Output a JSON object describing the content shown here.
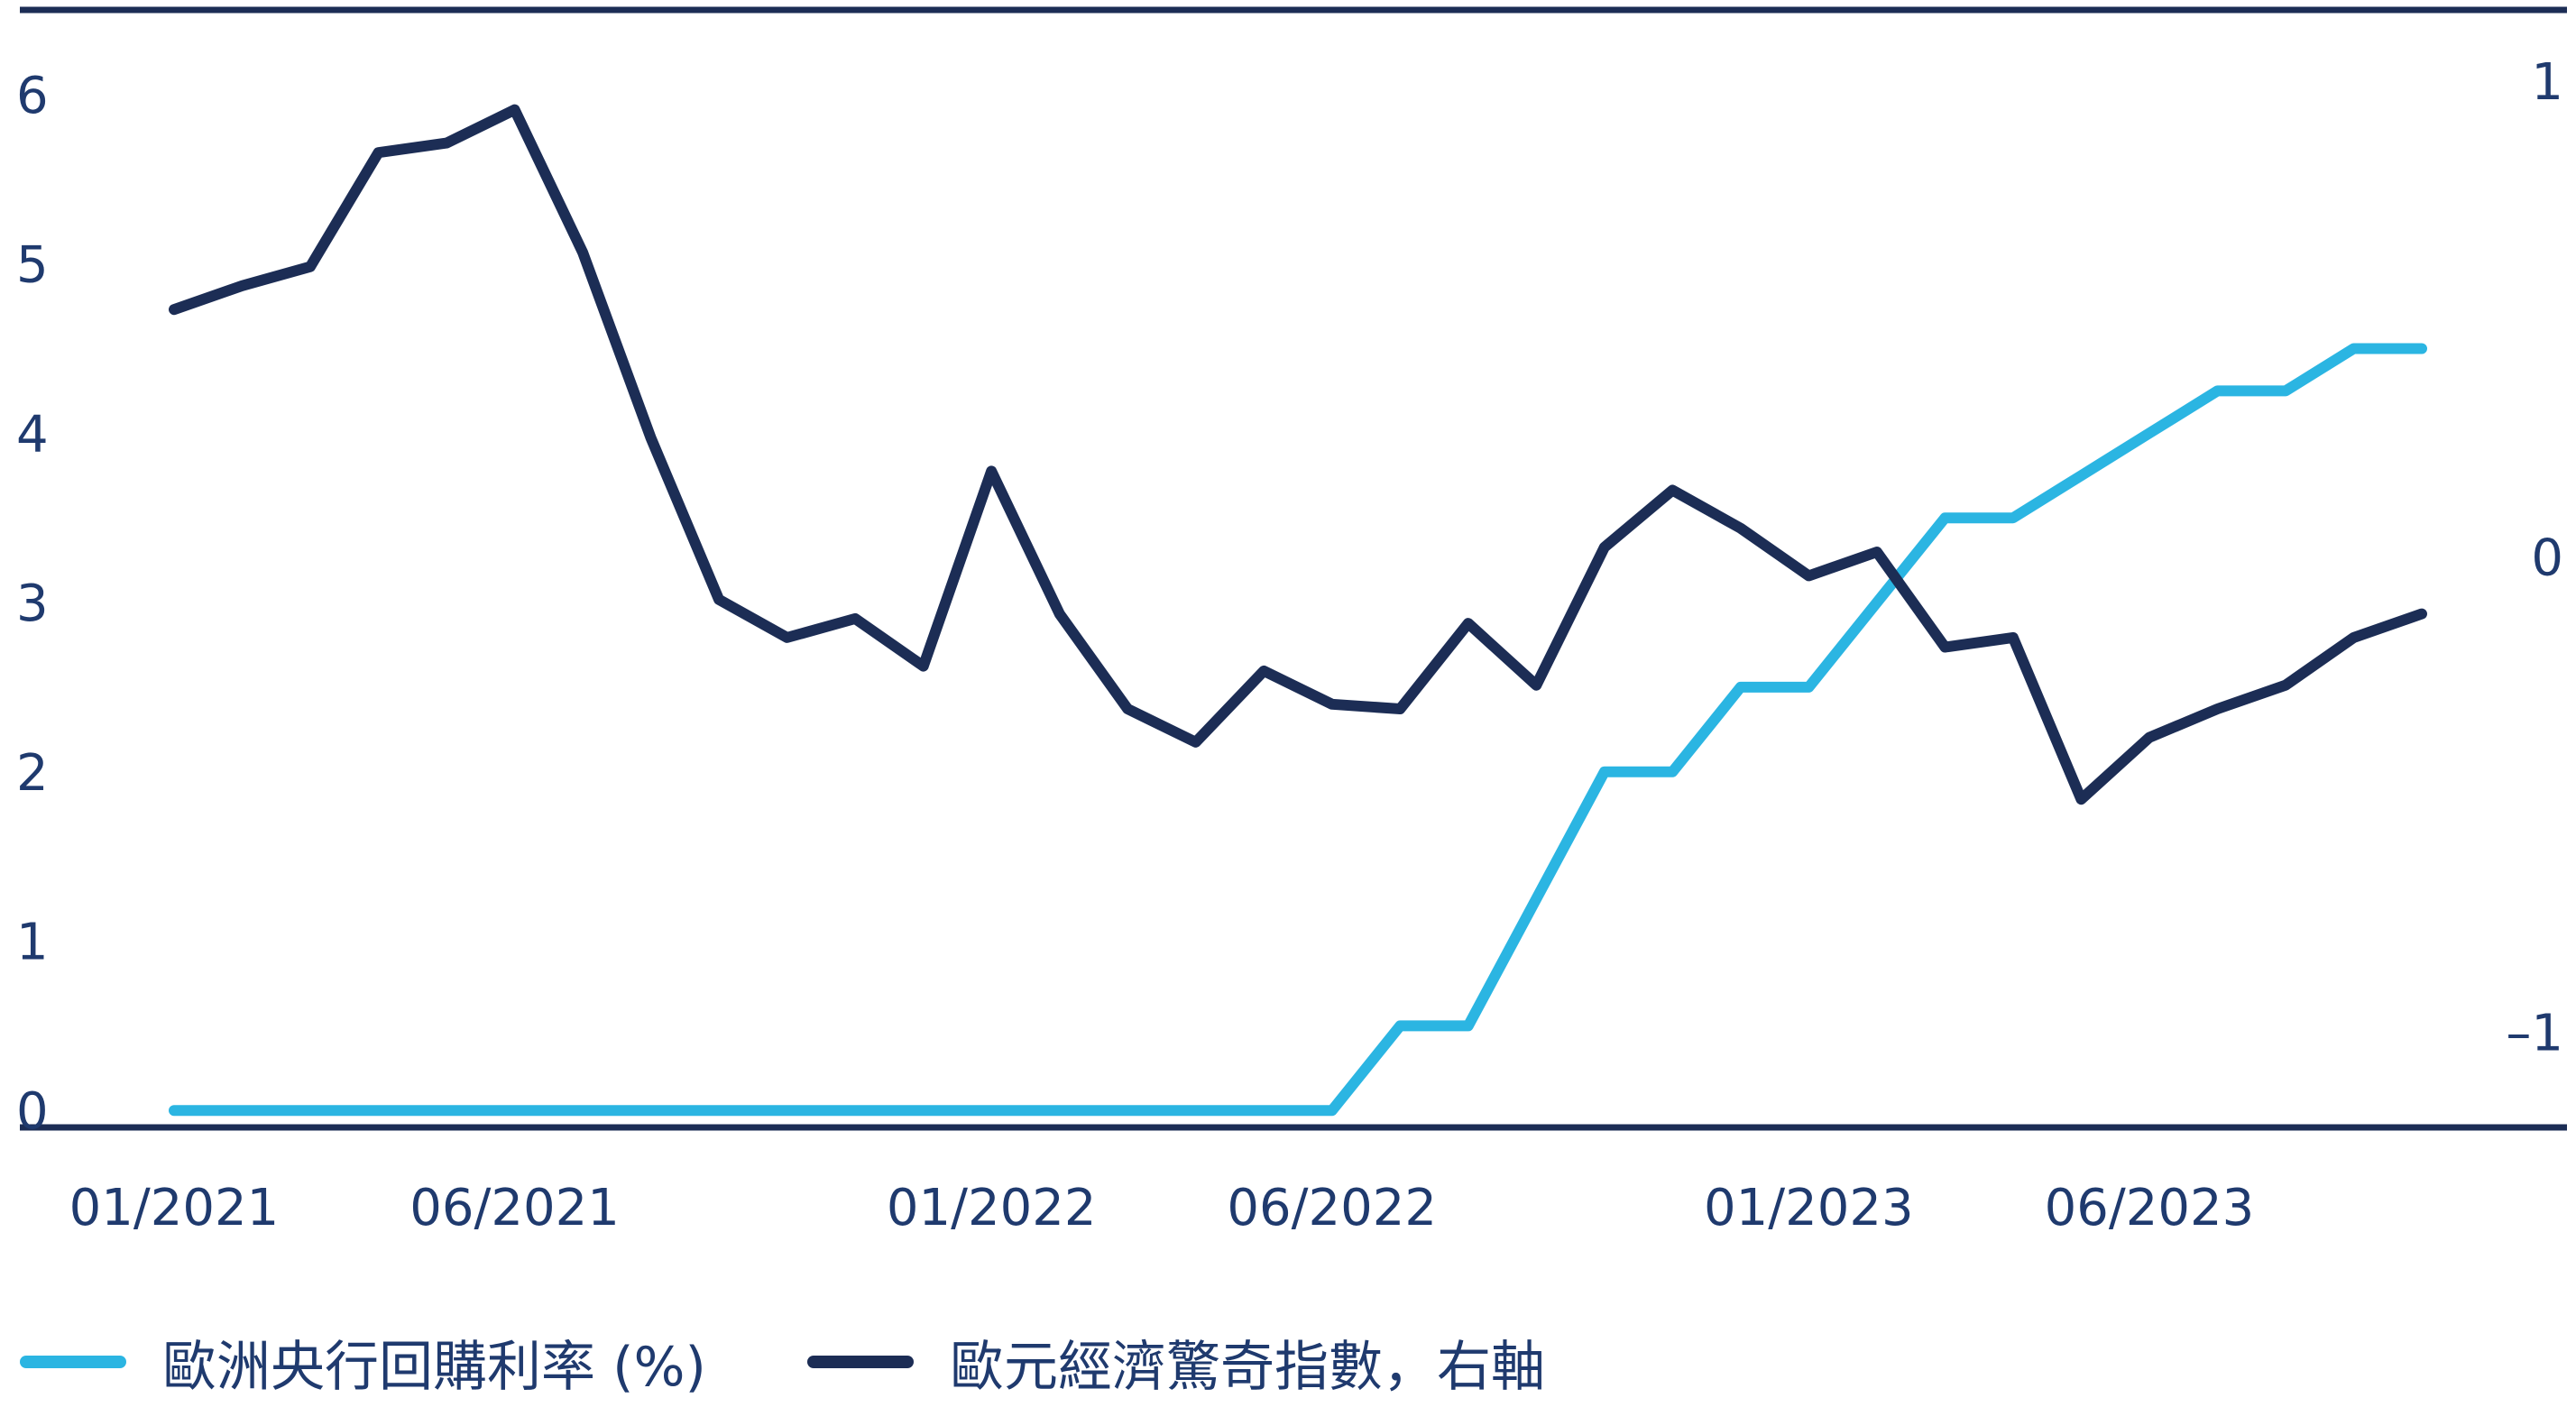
{
  "chart_data": {
    "type": "line",
    "title": "",
    "x_ticks": [
      "01/2021",
      "06/2021",
      "01/2022",
      "06/2022",
      "01/2023",
      "06/2023"
    ],
    "left_axis": {
      "ticks": [
        0,
        1,
        2,
        3,
        4,
        5,
        6
      ],
      "tick_labels": [
        "0",
        "1",
        "2",
        "3",
        "4",
        "5",
        "6"
      ],
      "range": [
        -0.1,
        6.5
      ]
    },
    "right_axis": {
      "ticks": [
        -1,
        0,
        1
      ],
      "tick_labels": [
        "–1",
        "0",
        "1"
      ],
      "range": [
        -1.2,
        1.15
      ]
    },
    "grid": false,
    "legend_position": "bottom",
    "series": [
      {
        "name": "歐洲央行回購利率 (%)",
        "axis": "left",
        "color": "#2bb5e2",
        "x": [
          "2021-01",
          "2021-02",
          "2021-03",
          "2021-04",
          "2021-05",
          "2021-06",
          "2021-07",
          "2021-08",
          "2021-09",
          "2021-10",
          "2021-11",
          "2021-12",
          "2022-01",
          "2022-02",
          "2022-03",
          "2022-04",
          "2022-05",
          "2022-06",
          "2022-07",
          "2022-08",
          "2022-09",
          "2022-10",
          "2022-11",
          "2022-12",
          "2023-01",
          "2023-02",
          "2023-03",
          "2023-04",
          "2023-05",
          "2023-06",
          "2023-07",
          "2023-08",
          "2023-09",
          "2023-10"
        ],
        "values": [
          0,
          0,
          0,
          0,
          0,
          0,
          0,
          0,
          0,
          0,
          0,
          0,
          0,
          0,
          0,
          0,
          0,
          0,
          0.5,
          0.5,
          1.25,
          2.0,
          2.0,
          2.5,
          2.5,
          3.0,
          3.5,
          3.5,
          3.75,
          4.0,
          4.25,
          4.25,
          4.5,
          4.5
        ]
      },
      {
        "name": "歐元經濟驚奇指數，右軸",
        "axis": "right",
        "color": "#1c2d55",
        "x": [
          "2021-01",
          "2021-02",
          "2021-03",
          "2021-04",
          "2021-05",
          "2021-06",
          "2021-07",
          "2021-08",
          "2021-09",
          "2021-10",
          "2021-11",
          "2021-12",
          "2022-01",
          "2022-02",
          "2022-03",
          "2022-04",
          "2022-05",
          "2022-06",
          "2022-07",
          "2022-08",
          "2022-09",
          "2022-10",
          "2022-11",
          "2022-12",
          "2023-01",
          "2023-02",
          "2023-03",
          "2023-04",
          "2023-05",
          "2023-06",
          "2023-07",
          "2023-08",
          "2023-09",
          "2023-10"
        ],
        "values": [
          0.52,
          0.57,
          0.61,
          0.85,
          0.87,
          0.94,
          0.64,
          0.25,
          -0.09,
          -0.17,
          -0.13,
          -0.23,
          0.18,
          -0.12,
          -0.32,
          -0.39,
          -0.24,
          -0.31,
          -0.32,
          -0.14,
          -0.27,
          0.02,
          0.14,
          0.06,
          -0.04,
          0.01,
          -0.19,
          -0.17,
          -0.51,
          -0.38,
          -0.32,
          -0.27,
          -0.17,
          -0.12
        ]
      }
    ]
  }
}
